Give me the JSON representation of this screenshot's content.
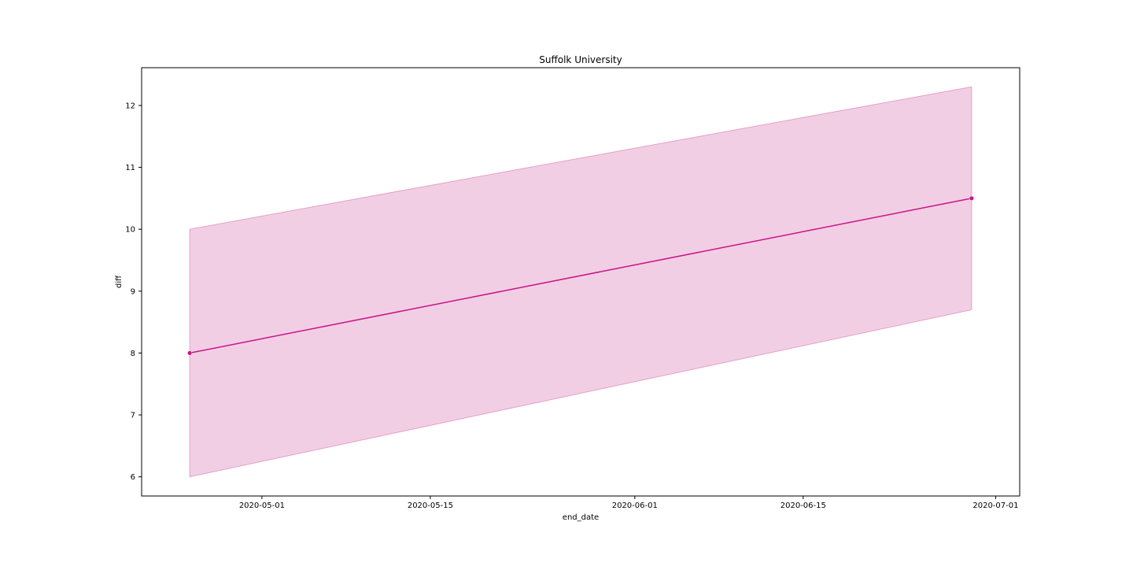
{
  "chart_data": {
    "type": "line",
    "title": "Suffolk University",
    "xlabel": "end_date",
    "ylabel": "diff",
    "x_axis": {
      "type": "date",
      "range": [
        "2020-04-21",
        "2020-07-03"
      ],
      "ticks": [
        "2020-05-01",
        "2020-05-15",
        "2020-06-01",
        "2020-06-15",
        "2020-07-01"
      ]
    },
    "y_axis": {
      "range": [
        5.69,
        12.61
      ],
      "ticks": [
        6,
        7,
        8,
        9,
        10,
        11,
        12
      ]
    },
    "grid": false,
    "series": [
      {
        "x": [
          "2020-04-25",
          "2020-06-29"
        ],
        "y": [
          8.0,
          10.5
        ],
        "ci_lower": [
          6.0,
          8.7
        ],
        "ci_upper": [
          10.0,
          12.3
        ],
        "color": "#c71585",
        "marker": "circle"
      }
    ],
    "colors": {
      "line": "#c71585",
      "band_fill": "#f2cee4",
      "band_edge": "#e2a0c9",
      "axes": "#000000"
    }
  }
}
